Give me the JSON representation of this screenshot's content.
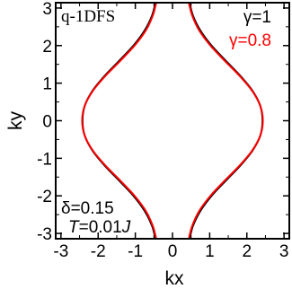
{
  "chart_data": {
    "type": "line",
    "panel_label": "q-1DFS",
    "xlabel": "kx",
    "ylabel": "ky",
    "xlim": [
      -3.14159,
      3.14159
    ],
    "ylim": [
      -3.14159,
      3.14159
    ],
    "x_ticks": [
      {
        "value": -3,
        "label": "-3"
      },
      {
        "value": -2,
        "label": "-2"
      },
      {
        "value": -1,
        "label": "-1"
      },
      {
        "value": 0,
        "label": "0"
      },
      {
        "value": 1,
        "label": "1"
      },
      {
        "value": 2,
        "label": "2"
      },
      {
        "value": 3,
        "label": "3"
      }
    ],
    "y_ticks": [
      {
        "value": 3,
        "label": "3"
      },
      {
        "value": 2,
        "label": "2"
      },
      {
        "value": 1,
        "label": "1"
      },
      {
        "value": 0,
        "label": "0"
      },
      {
        "value": -1,
        "label": "-1"
      },
      {
        "value": -2,
        "label": "-2"
      },
      {
        "value": -3,
        "label": "-3"
      }
    ],
    "grid": false,
    "legend_position": "top-right",
    "series": [
      {
        "name": "γ=1",
        "color": "#000000",
        "y": [
          -3.14,
          -2.8,
          -2.4,
          -2.0,
          -1.6,
          -1.2,
          -0.8,
          -0.4,
          0.0,
          0.4,
          0.8,
          1.2,
          1.6,
          2.0,
          2.4,
          2.8,
          3.14
        ],
        "x_right": [
          0.46,
          0.55,
          0.75,
          1.05,
          1.43,
          1.82,
          2.15,
          2.36,
          2.42,
          2.36,
          2.15,
          1.82,
          1.43,
          1.05,
          0.75,
          0.55,
          0.46
        ],
        "x_left": [
          -0.46,
          -0.55,
          -0.75,
          -1.05,
          -1.43,
          -1.82,
          -2.15,
          -2.36,
          -2.42,
          -2.36,
          -2.15,
          -1.82,
          -1.43,
          -1.05,
          -0.75,
          -0.55,
          -0.46
        ]
      },
      {
        "name": "γ=0.8",
        "color": "#ff0000",
        "y": [
          -3.14,
          -2.8,
          -2.4,
          -2.0,
          -1.6,
          -1.2,
          -0.8,
          -0.4,
          0.0,
          0.4,
          0.8,
          1.2,
          1.6,
          2.0,
          2.4,
          2.8,
          3.14
        ],
        "x_right": [
          0.44,
          0.53,
          0.72,
          1.02,
          1.4,
          1.8,
          2.14,
          2.36,
          2.43,
          2.36,
          2.14,
          1.8,
          1.4,
          1.02,
          0.72,
          0.53,
          0.44
        ],
        "x_left": [
          -0.44,
          -0.53,
          -0.72,
          -1.02,
          -1.4,
          -1.8,
          -2.14,
          -2.36,
          -2.43,
          -2.36,
          -2.14,
          -1.8,
          -1.4,
          -1.02,
          -0.72,
          -0.53,
          -0.44
        ]
      }
    ],
    "annotations": {
      "delta": "δ=0.15",
      "temperature_var": "T",
      "temperature_eq": "=0.01",
      "temperature_unit": "J"
    }
  }
}
